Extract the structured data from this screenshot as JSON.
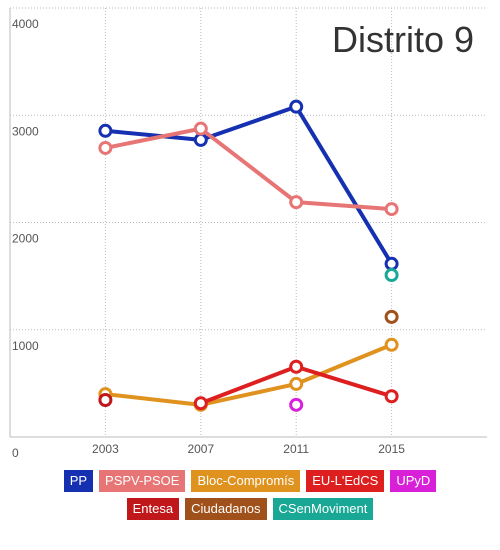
{
  "chart_data": {
    "type": "line",
    "title": "Distrito 9",
    "x": [
      2003,
      2007,
      2011,
      2015
    ],
    "xlim": [
      1999,
      2019
    ],
    "xticks": [
      2003,
      2007,
      2011,
      2015
    ],
    "ylim": [
      0,
      4000
    ],
    "yticks": [
      0,
      1000,
      2000,
      3000,
      4000
    ],
    "grid": true,
    "series": [
      {
        "name": "PP",
        "color": "#1530b0",
        "values": [
          2855,
          2770,
          3080,
          1615
        ]
      },
      {
        "name": "PSPV-PSOE",
        "color": "#e87575",
        "values": [
          2695,
          2875,
          2190,
          2125
        ]
      },
      {
        "name": "Bloc-Compromís",
        "color": "#e0921e",
        "values": [
          400,
          300,
          495,
          860
        ]
      },
      {
        "name": "EU-L'EdCS",
        "color": "#dd1f1f",
        "values": [
          null,
          315,
          655,
          380
        ]
      },
      {
        "name": "UPyD",
        "color": "#d820d8",
        "values": [
          null,
          null,
          300,
          null
        ]
      },
      {
        "name": "Entesa",
        "color": "#c0181a",
        "values": [
          345,
          null,
          null,
          null
        ]
      },
      {
        "name": "Ciudadanos",
        "color": "#a0501a",
        "values": [
          null,
          null,
          null,
          1120
        ]
      },
      {
        "name": "CSenMoviment",
        "color": "#1aa896",
        "values": [
          null,
          null,
          null,
          1510
        ]
      }
    ]
  }
}
